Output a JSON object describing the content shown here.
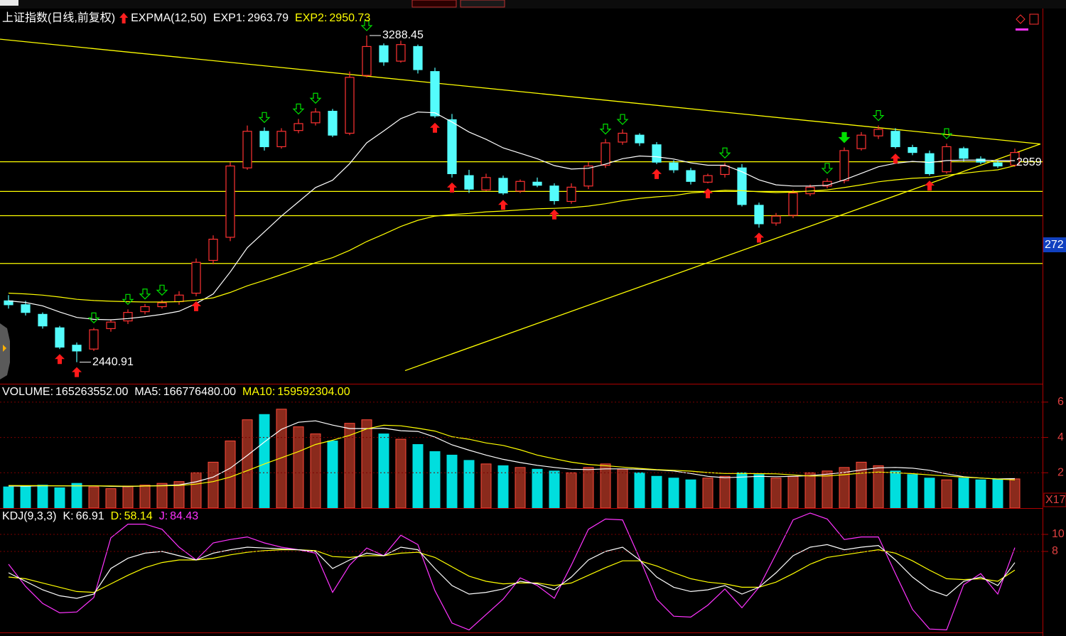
{
  "chart_data": [
    {
      "type": "candlestick",
      "title": "上证指数(日线,前复权)",
      "indicator": "EXPMA(12,50)",
      "up_color": "#ff3232",
      "down_color": "#54fcfc",
      "line_color": "#ffff00",
      "ylim": [
        2385,
        3353
      ],
      "open": [
        2600,
        2590,
        2565,
        2530,
        2485,
        2475,
        2528,
        2548,
        2572,
        2585,
        2598,
        2620,
        2705,
        2765,
        2945,
        3040,
        3000,
        3042,
        3062,
        3092,
        3035,
        3185,
        3262,
        3222,
        3260,
        3195,
        3070,
        2925,
        2888,
        2918,
        2885,
        2908,
        2898,
        2858,
        2898,
        2952,
        3012,
        3030,
        3005,
        2958,
        2938,
        2908,
        2928,
        2945,
        2848,
        2802,
        2822,
        2878,
        2898,
        2912,
        2995,
        3028,
        3040,
        2998,
        2982,
        2935,
        2995,
        2968,
        2958,
        2952
      ],
      "high": [
        2615,
        2600,
        2570,
        2535,
        2492,
        2530,
        2552,
        2578,
        2592,
        2602,
        2625,
        2710,
        2770,
        2960,
        3055,
        3050,
        3048,
        3072,
        3100,
        3098,
        3195,
        3288.45,
        3268,
        3275,
        3265,
        3205,
        3085,
        2940,
        2930,
        2925,
        2915,
        2920,
        2905,
        2905,
        2960,
        3020,
        3045,
        3035,
        3012,
        2965,
        2945,
        2930,
        2958,
        2955,
        2855,
        2828,
        2888,
        2902,
        2918,
        2998,
        3038,
        3055,
        3048,
        3005,
        2990,
        3008,
        3000,
        2975,
        2965,
        2995
      ],
      "low": [
        2580,
        2562,
        2528,
        2475,
        2440.91,
        2470,
        2520,
        2540,
        2565,
        2580,
        2590,
        2612,
        2695,
        2755,
        2940,
        2990,
        2995,
        3035,
        3055,
        3025,
        3030,
        3180,
        3210,
        3218,
        3190,
        3075,
        2920,
        2880,
        2885,
        2875,
        2880,
        2895,
        2850,
        2852,
        2890,
        2945,
        3005,
        3002,
        2955,
        2932,
        2902,
        2905,
        2920,
        2845,
        2790,
        2795,
        2815,
        2872,
        2892,
        2905,
        2990,
        3020,
        2995,
        2978,
        2925,
        2930,
        2962,
        2955,
        2945,
        2948
      ],
      "close": [
        2590,
        2570,
        2535,
        2480,
        2470,
        2525,
        2545,
        2570,
        2585,
        2595,
        2615,
        2700,
        2760,
        2950,
        3040,
        3000,
        3040,
        3060,
        3090,
        3030,
        3180,
        3260,
        3220,
        3265,
        3200,
        3080,
        2930,
        2890,
        2920,
        2880,
        2910,
        2900,
        2860,
        2895,
        2950,
        3010,
        3035,
        3010,
        2960,
        2940,
        2910,
        2925,
        2950,
        2850,
        2800,
        2820,
        2880,
        2895,
        2910,
        2990,
        3030,
        3045,
        3000,
        2985,
        2930,
        3000,
        2970,
        2960,
        2950,
        2985
      ],
      "series": [
        {
          "name": "EXP1:",
          "color": "#ffffff",
          "values": [
            2600,
            2596,
            2587,
            2571,
            2557,
            2552,
            2551,
            2554,
            2559,
            2565,
            2573,
            2593,
            2618,
            2675,
            2738,
            2779,
            2820,
            2857,
            2894,
            2913,
            2956,
            3010,
            3041,
            3073,
            3090,
            3088,
            3064,
            3038,
            3019,
            2997,
            2983,
            2969,
            2951,
            2942,
            2944,
            2955,
            2969,
            2976,
            2974,
            2968,
            2958,
            2952,
            2952,
            2935,
            2914,
            2901,
            2898,
            2898,
            2900,
            2914,
            2931,
            2948,
            2957,
            2962,
            2959,
            2964,
            2965,
            2965,
            2964,
            2963.79
          ]
        },
        {
          "name": "EXP2:",
          "color": "#ffff00",
          "values": [
            2620,
            2618,
            2615,
            2610,
            2604,
            2601,
            2599,
            2598,
            2597,
            2597,
            2598,
            2602,
            2608,
            2622,
            2639,
            2653,
            2668,
            2683,
            2699,
            2712,
            2731,
            2754,
            2773,
            2793,
            2809,
            2820,
            2824,
            2827,
            2831,
            2833,
            2836,
            2839,
            2840,
            2842,
            2846,
            2852,
            2860,
            2866,
            2870,
            2873,
            2880,
            2883,
            2887,
            2886,
            2883,
            2881,
            2882,
            2885,
            2888,
            2894,
            2901,
            2909,
            2914,
            2918,
            2920,
            2926,
            2931,
            2936,
            2940,
            2950.73
          ]
        }
      ],
      "annotations": [
        {
          "index": 21,
          "value": 3288.45
        },
        {
          "index": 4,
          "value": 2440.91
        }
      ],
      "hlines": [
        2961,
        2884,
        2821,
        2697
      ],
      "trendlines": [
        {
          "x": [
            -0.5,
            60.5
          ],
          "y": [
            3279,
            3007
          ]
        },
        {
          "x": [
            23.25,
            60.5
          ],
          "y": [
            2419,
            3007
          ]
        }
      ],
      "buy_signals": [
        3,
        4,
        11,
        25,
        26,
        29,
        32,
        38,
        41,
        44,
        52,
        54
      ],
      "sell_signals": [
        5,
        7,
        8,
        9,
        15,
        17,
        18,
        21,
        35,
        36,
        42,
        48,
        51,
        55
      ],
      "strong_sell_signals": [
        49
      ],
      "last_price": 2959,
      "cursor_price": 272
    },
    {
      "type": "bar",
      "title": "VOLUME:",
      "up_color": "#8a2a1c",
      "up_edge": "#ff4a3a",
      "down_color": "#00dede",
      "ylim": [
        0,
        700000000
      ],
      "yticks": [
        {
          "value": 200000000,
          "label": "2"
        },
        {
          "value": 400000000,
          "label": "4"
        },
        {
          "value": 600000000,
          "label": "6"
        }
      ],
      "unit_label": "X17",
      "values": [
        120000000,
        125000000,
        130000000,
        115000000,
        140000000,
        120000000,
        110000000,
        125000000,
        130000000,
        140000000,
        150000000,
        200000000,
        260000000,
        380000000,
        500000000,
        530000000,
        560000000,
        460000000,
        420000000,
        380000000,
        480000000,
        500000000,
        420000000,
        390000000,
        360000000,
        320000000,
        300000000,
        270000000,
        250000000,
        240000000,
        230000000,
        220000000,
        210000000,
        200000000,
        230000000,
        250000000,
        220000000,
        200000000,
        180000000,
        170000000,
        160000000,
        170000000,
        180000000,
        200000000,
        190000000,
        170000000,
        180000000,
        200000000,
        210000000,
        230000000,
        260000000,
        240000000,
        210000000,
        190000000,
        170000000,
        160000000,
        170000000,
        160000000,
        165000000,
        165263552
      ],
      "value_labels": [
        null,
        null,
        null,
        null,
        null,
        null,
        null,
        null,
        null,
        null,
        null,
        null,
        null,
        null,
        null,
        null,
        null,
        null,
        null,
        null,
        null,
        null,
        null,
        null,
        null,
        null,
        null,
        null,
        null,
        null,
        null,
        null,
        null,
        null,
        null,
        null,
        null,
        null,
        null,
        null,
        null,
        null,
        null,
        null,
        null,
        null,
        null,
        null,
        null,
        null,
        null,
        null,
        null,
        null,
        null,
        null,
        null,
        null,
        null,
        "165263552.00"
      ],
      "series": [
        {
          "name": "MA5:",
          "color": "#ffffff",
          "values": [
            125000000,
            124000000,
            126000000,
            126000000,
            126000000,
            126000000,
            123000000,
            122000000,
            125000000,
            127000000,
            131000000,
            149000000,
            176000000,
            226000000,
            298000000,
            374000000,
            446000000,
            486000000,
            494000000,
            470000000,
            450000000,
            450000000,
            452000000,
            438000000,
            434000000,
            402000000,
            358000000,
            328000000,
            300000000,
            276000000,
            258000000,
            242000000,
            230000000,
            220000000,
            218000000,
            222000000,
            222000000,
            220000000,
            216000000,
            210000000,
            196000000,
            180000000,
            172000000,
            176000000,
            180000000,
            178000000,
            180000000,
            184000000,
            192000000,
            202000000,
            216000000,
            228000000,
            230000000,
            226000000,
            214000000,
            194000000,
            178000000,
            170000000,
            165000000,
            166776480
          ],
          "value_labels": [
            null,
            null,
            null,
            null,
            null,
            null,
            null,
            null,
            null,
            null,
            null,
            null,
            null,
            null,
            null,
            null,
            null,
            null,
            null,
            null,
            null,
            null,
            null,
            null,
            null,
            null,
            null,
            null,
            null,
            null,
            null,
            null,
            null,
            null,
            null,
            null,
            null,
            null,
            null,
            null,
            null,
            null,
            null,
            null,
            null,
            null,
            null,
            null,
            null,
            null,
            null,
            null,
            null,
            null,
            null,
            null,
            null,
            null,
            null,
            "166776480.00"
          ]
        },
        {
          "name": "MA10:",
          "color": "#ffff00",
          "values": [
            128000000,
            127000000,
            127000000,
            126000000,
            126000000,
            126000000,
            125000000,
            124000000,
            125000000,
            126000000,
            128000000,
            136000000,
            150000000,
            176000000,
            212000000,
            250000000,
            285000000,
            320000000,
            360000000,
            384000000,
            412000000,
            448000000,
            469000000,
            466000000,
            452000000,
            436000000,
            404000000,
            390000000,
            369000000,
            355000000,
            330000000,
            300000000,
            279000000,
            260000000,
            247000000,
            240000000,
            232000000,
            225000000,
            218000000,
            214000000,
            209000000,
            201000000,
            196000000,
            196000000,
            195000000,
            194000000,
            188000000,
            182000000,
            182000000,
            189000000,
            198000000,
            204000000,
            200000000,
            195000000,
            188000000,
            182000000,
            175000000,
            170000000,
            164000000,
            159592304
          ],
          "value_labels": [
            null,
            null,
            null,
            null,
            null,
            null,
            null,
            null,
            null,
            null,
            null,
            null,
            null,
            null,
            null,
            null,
            null,
            null,
            null,
            null,
            null,
            null,
            null,
            null,
            null,
            null,
            null,
            null,
            null,
            null,
            null,
            null,
            null,
            null,
            null,
            null,
            null,
            null,
            null,
            null,
            null,
            null,
            null,
            null,
            null,
            null,
            null,
            null,
            null,
            null,
            null,
            null,
            null,
            null,
            null,
            null,
            null,
            null,
            null,
            "159592304.00"
          ]
        }
      ]
    },
    {
      "type": "line",
      "title": "KDJ(9,3,3)",
      "ylim": [
        -15,
        130
      ],
      "yticks": [
        {
          "value": 100,
          "label": "10"
        },
        {
          "value": 80,
          "label": "8"
        }
      ],
      "grid": true,
      "series": [
        {
          "name": "K:",
          "color": "#ffffff",
          "values": [
            55,
            45,
            35,
            28,
            25,
            30,
            60,
            72,
            78,
            80,
            75,
            70,
            78,
            82,
            85,
            84,
            83,
            82,
            80,
            60,
            70,
            78,
            75,
            85,
            82,
            60,
            40,
            30,
            32,
            36,
            45,
            42,
            35,
            50,
            70,
            80,
            85,
            70,
            50,
            38,
            33,
            35,
            40,
            30,
            38,
            55,
            75,
            85,
            88,
            82,
            85,
            87,
            70,
            50,
            35,
            28,
            45,
            50,
            40,
            66.91
          ]
        },
        {
          "name": "D:",
          "color": "#ffff00",
          "values": [
            50,
            48,
            43,
            38,
            33,
            32,
            42,
            52,
            61,
            67,
            70,
            70,
            72,
            76,
            79,
            81,
            82,
            82,
            81,
            74,
            73,
            75,
            75,
            78,
            79,
            73,
            62,
            51,
            45,
            42,
            43,
            43,
            40,
            43,
            52,
            61,
            69,
            69,
            63,
            55,
            48,
            44,
            42,
            38,
            38,
            44,
            54,
            65,
            73,
            76,
            79,
            82,
            78,
            69,
            58,
            48,
            47,
            48,
            45,
            58.14
          ]
        },
        {
          "name": "J:",
          "color": "#ff33ff",
          "values": [
            65,
            39,
            19,
            8,
            9,
            26,
            96,
            112,
            112,
            106,
            85,
            70,
            90,
            94,
            97,
            90,
            85,
            82,
            78,
            32,
            64,
            84,
            75,
            99,
            88,
            34,
            -4,
            -12,
            6,
            24,
            49,
            40,
            25,
            64,
            106,
            118,
            117,
            72,
            24,
            4,
            3,
            17,
            36,
            14,
            38,
            77,
            117,
            125,
            118,
            94,
            97,
            97,
            54,
            12,
            -11,
            -12,
            41,
            54,
            30,
            84.43
          ]
        }
      ]
    }
  ]
}
